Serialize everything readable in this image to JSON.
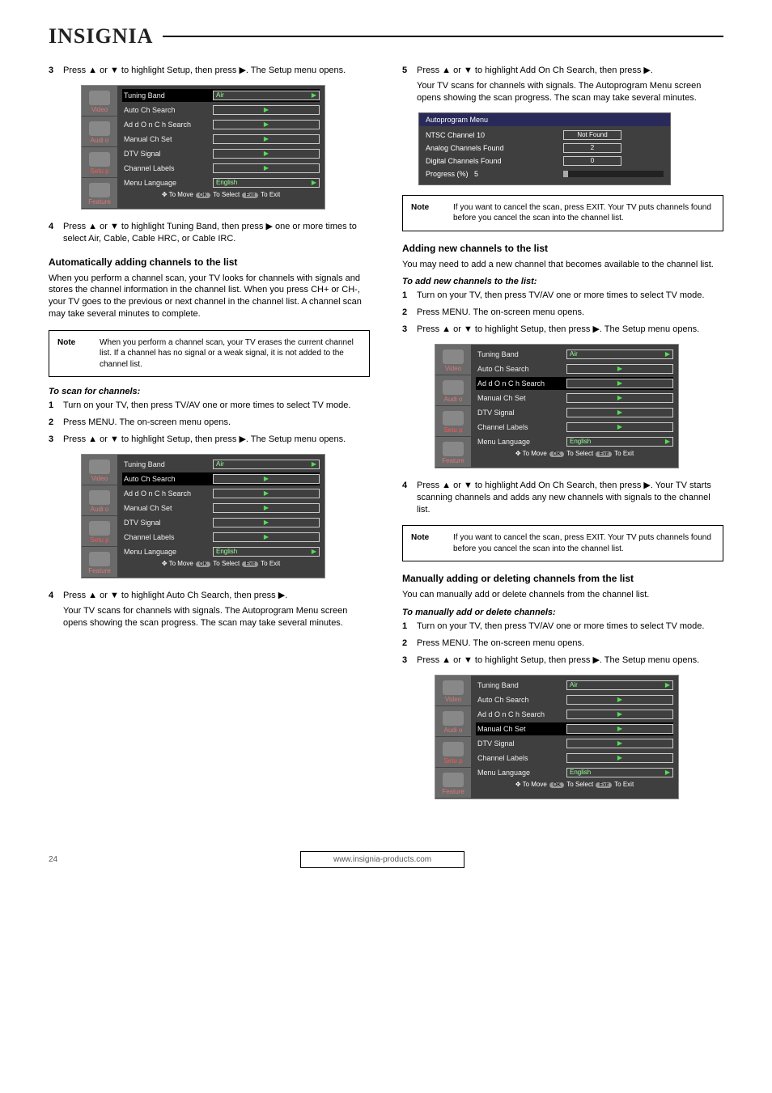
{
  "brand": "INSIGNIA",
  "leftcol": {
    "step3": "Press ▲ or ▼ to highlight Setup, then press ▶. The Setup menu opens.",
    "step4": "Press ▲ or ▼ to highlight Tuning Band, then press ▶ one or more times to select Air, Cable, Cable HRC, or Cable IRC.",
    "auto_title": "Automatically adding channels to the list",
    "auto_intro": "When you perform a channel scan, your TV looks for channels with signals and stores the channel information in the channel list. When you press CH+ or CH-, your TV goes to the previous or next channel in the channel list. A channel scan may take several minutes to complete.",
    "note1": "When you perform a channel scan, your TV erases the current channel list. If a channel has no signal or a weak signal, it is not added to the channel list.",
    "scan_sub": "To scan for channels:",
    "scan_s1": "Turn on your TV, then press TV/AV one or more times to select TV mode.",
    "scan_s2": "Press MENU. The on-screen menu opens.",
    "scan_s3": "Press ▲ or ▼ to highlight Setup, then press ▶. The Setup menu opens.",
    "scan_s4": {
      "line1": "Press ▲ or ▼ to highlight Auto Ch Search, then press ▶.",
      "line2": "Your TV scans for channels with signals. The Autoprogram Menu screen opens showing the scan progress. The scan may take several minutes."
    }
  },
  "rightcol": {
    "step5_part1": "Press ▲ or ▼ to highlight Add On Ch Search, then press ▶.",
    "step5_part2": "Your TV scans for channels with signals. The Autoprogram Menu screen opens showing the scan progress. The scan may take several minutes.",
    "note2": "If you want to cancel the scan, press EXIT. Your TV puts channels found before you cancel the scan into the channel list.",
    "add_title": "Adding new channels to the list",
    "add_intro": "You may need to add a new channel that becomes available to the channel list.",
    "add_sub": "To add new channels to the list:",
    "add_s1": "Turn on your TV, then press TV/AV one or more times to select TV mode.",
    "add_s2": "Press MENU. The on-screen menu opens.",
    "add_s3": "Press ▲ or ▼ to highlight Setup, then press ▶. The Setup menu opens.",
    "add_s4": "Press ▲ or ▼ to highlight Add On Ch Search, then press ▶. Your TV starts scanning channels and adds any new channels with signals to the channel list.",
    "note3": "If you want to cancel the scan, press EXIT. Your TV puts channels found before you cancel the scan into the channel list.",
    "man_title": "Manually adding or deleting channels from the list",
    "man_intro": "You can manually add or delete channels from the channel list.",
    "man_sub": "To manually add or delete channels:",
    "man_s1": "Turn on your TV, then press TV/AV one or more times to select TV mode.",
    "man_s2": "Press MENU. The on-screen menu opens.",
    "man_s3": "Press ▲ or ▼ to highlight Setup, then press ▶. The Setup menu opens."
  },
  "osd_tabs": [
    "Video",
    "Audi o",
    "Setu p",
    "Feature"
  ],
  "osd_rows": [
    {
      "label": "Tuning Band",
      "value": "Air",
      "showval": true
    },
    {
      "label": "Auto Ch Search",
      "value": "",
      "showval": false
    },
    {
      "label": "Ad d O n C h Search",
      "value": "",
      "showval": false
    },
    {
      "label": "Manual Ch Set",
      "value": "",
      "showval": false
    },
    {
      "label": "DTV Signal",
      "value": "",
      "showval": false
    },
    {
      "label": "Channel Labels",
      "value": "",
      "showval": false
    },
    {
      "label": "Menu Language",
      "value": "English",
      "showval": true
    }
  ],
  "osd_footer": {
    "move": "To Move",
    "ok": "OK",
    "select": "To Select",
    "exit": "Exit",
    "toexit": "To Exit"
  },
  "autoprog": {
    "title": "Autoprogram   Menu",
    "rows": [
      {
        "label": "NTSC  Channel  10",
        "value": "Not Found"
      },
      {
        "label": "Analog Channels  Found",
        "value": "2"
      },
      {
        "label": "Digital Channels  Found",
        "value": "0"
      }
    ],
    "progress_label": "Progress  (%)",
    "progress_value": "5",
    "progress_pct": 5
  },
  "footer": {
    "page": "24",
    "url": "www.insignia-products.com"
  }
}
